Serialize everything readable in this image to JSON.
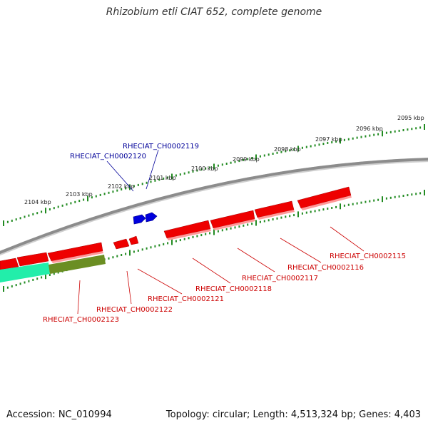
{
  "title": "Rhizobium etli CIAT 652, complete genome",
  "footer": {
    "accession": "Accession: NC_010994",
    "summary": "Topology: circular; Length: 4,513,324 bp; Genes: 4,403"
  },
  "colors": {
    "backbone": "#8c8c8c",
    "ticks": "#228b22",
    "gene_red": "#ee0000",
    "gene_blue": "#0000dd",
    "gene_cyan": "#22eeaa",
    "gene_olive": "#6b8e23",
    "label_red": "#cc0000",
    "label_blue": "#000099"
  },
  "kbp_labels": [
    "2095 kbp",
    "2096 kbp",
    "2097 kbp",
    "2098 kbp",
    "2099 kbp",
    "2100 kbp",
    "2101 kbp",
    "2102 kbp",
    "2103 kbp",
    "2104 kbp"
  ],
  "gene_labels_forward": [
    "RHECIAT_CH0002119",
    "RHECIAT_CH0002120"
  ],
  "gene_labels_reverse": [
    "RHECIAT_CH0002115",
    "RHECIAT_CH0002116",
    "RHECIAT_CH0002117",
    "RHECIAT_CH0002118",
    "RHECIAT_CH0002121",
    "RHECIAT_CH0002122",
    "RHECIAT_CH0002123"
  ]
}
